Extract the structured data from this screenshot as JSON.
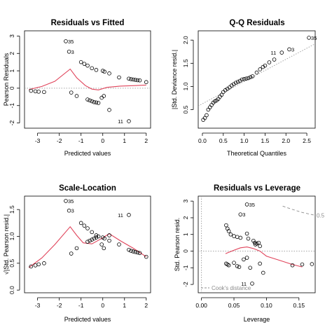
{
  "chart_data": [
    {
      "type": "scatter",
      "title": "Residuals vs Fitted",
      "xlabel": "Predicted values",
      "ylabel": "Pearson Residuals",
      "xlim": [
        -3.6,
        2.2
      ],
      "ylim": [
        -2.3,
        3.3
      ],
      "xticks": [
        -3,
        -2,
        -1,
        0,
        1,
        2
      ],
      "yticks": [
        -2,
        -1,
        0,
        1,
        2,
        3
      ],
      "reference_line": {
        "y": 0,
        "style": "dotted",
        "color": "#9a9a9a"
      },
      "points": [
        {
          "x": -3.3,
          "y": -0.15
        },
        {
          "x": -3.1,
          "y": -0.18
        },
        {
          "x": -2.95,
          "y": -0.2
        },
        {
          "x": -2.7,
          "y": -0.22
        },
        {
          "x": -1.7,
          "y": 2.7,
          "label": "35"
        },
        {
          "x": -1.55,
          "y": 2.1,
          "label": "3"
        },
        {
          "x": -1.45,
          "y": -0.25
        },
        {
          "x": -1.2,
          "y": -0.45
        },
        {
          "x": -1.0,
          "y": 1.5
        },
        {
          "x": -0.85,
          "y": 1.4
        },
        {
          "x": -0.7,
          "y": 1.3
        },
        {
          "x": -0.5,
          "y": 1.15
        },
        {
          "x": -0.3,
          "y": 1.05
        },
        {
          "x": 0.0,
          "y": 1.0
        },
        {
          "x": 0.08,
          "y": 0.95
        },
        {
          "x": 0.3,
          "y": 0.85
        },
        {
          "x": -0.7,
          "y": -0.65
        },
        {
          "x": -0.6,
          "y": -0.7
        },
        {
          "x": -0.5,
          "y": -0.75
        },
        {
          "x": -0.4,
          "y": -0.8
        },
        {
          "x": -0.3,
          "y": -0.82
        },
        {
          "x": -0.2,
          "y": -0.85
        },
        {
          "x": -0.05,
          "y": -0.55
        },
        {
          "x": 0.05,
          "y": -0.45
        },
        {
          "x": 0.3,
          "y": -1.25
        },
        {
          "x": 0.75,
          "y": 0.62
        },
        {
          "x": 1.2,
          "y": 0.55
        },
        {
          "x": 1.3,
          "y": 0.52
        },
        {
          "x": 1.4,
          "y": 0.5
        },
        {
          "x": 1.5,
          "y": 0.48
        },
        {
          "x": 1.6,
          "y": 0.46
        },
        {
          "x": 1.7,
          "y": 0.45
        },
        {
          "x": 2.0,
          "y": 0.35
        },
        {
          "x": 1.2,
          "y": -1.9,
          "label": "11"
        }
      ],
      "smooth": [
        [
          -3.4,
          -0.08
        ],
        [
          -2.8,
          0.1
        ],
        [
          -2.2,
          0.4
        ],
        [
          -1.5,
          1.1
        ],
        [
          -1.2,
          0.6
        ],
        [
          -0.8,
          0.15
        ],
        [
          -0.5,
          -0.05
        ],
        [
          -0.2,
          -0.1
        ],
        [
          0.2,
          0.05
        ],
        [
          0.8,
          0.12
        ],
        [
          1.5,
          0.15
        ],
        [
          2.0,
          0.18
        ]
      ]
    },
    {
      "type": "scatter",
      "title": "Q-Q Residuals",
      "xlabel": "Theoretical Quantiles",
      "ylabel": "|Std. Deviance resid.|",
      "xlim": [
        -0.1,
        2.7
      ],
      "ylim": [
        0.1,
        2.2
      ],
      "xticks": [
        0.0,
        0.5,
        1.0,
        1.5,
        2.0,
        2.5
      ],
      "xtick_labels": [
        "0.0",
        "0.5",
        "1.0",
        "1.5",
        "2.0",
        "2.5"
      ],
      "yticks": [
        0.5,
        1.0,
        1.5,
        2.0
      ],
      "ytick_labels": [
        "0.5",
        "1.0",
        "1.5",
        "2.0"
      ],
      "reference_line": {
        "from": [
          -0.1,
          0.58
        ],
        "to": [
          2.7,
          1.92
        ],
        "style": "dotted",
        "color": "#9a9a9a"
      },
      "points": [
        {
          "x": 0.02,
          "y": 0.28
        },
        {
          "x": 0.06,
          "y": 0.32
        },
        {
          "x": 0.1,
          "y": 0.38
        },
        {
          "x": 0.14,
          "y": 0.5
        },
        {
          "x": 0.18,
          "y": 0.55
        },
        {
          "x": 0.22,
          "y": 0.6
        },
        {
          "x": 0.26,
          "y": 0.65
        },
        {
          "x": 0.3,
          "y": 0.68
        },
        {
          "x": 0.34,
          "y": 0.7
        },
        {
          "x": 0.38,
          "y": 0.73
        },
        {
          "x": 0.42,
          "y": 0.78
        },
        {
          "x": 0.46,
          "y": 0.82
        },
        {
          "x": 0.5,
          "y": 0.88
        },
        {
          "x": 0.55,
          "y": 0.92
        },
        {
          "x": 0.6,
          "y": 0.95
        },
        {
          "x": 0.65,
          "y": 0.98
        },
        {
          "x": 0.7,
          "y": 1.02
        },
        {
          "x": 0.75,
          "y": 1.05
        },
        {
          "x": 0.8,
          "y": 1.08
        },
        {
          "x": 0.85,
          "y": 1.1
        },
        {
          "x": 0.9,
          "y": 1.12
        },
        {
          "x": 0.95,
          "y": 1.15
        },
        {
          "x": 1.0,
          "y": 1.16
        },
        {
          "x": 1.05,
          "y": 1.17
        },
        {
          "x": 1.1,
          "y": 1.18
        },
        {
          "x": 1.15,
          "y": 1.2
        },
        {
          "x": 1.2,
          "y": 1.22
        },
        {
          "x": 1.3,
          "y": 1.3
        },
        {
          "x": 1.38,
          "y": 1.37
        },
        {
          "x": 1.45,
          "y": 1.42
        },
        {
          "x": 1.5,
          "y": 1.45
        },
        {
          "x": 1.6,
          "y": 1.52
        },
        {
          "x": 1.72,
          "y": 1.58
        },
        {
          "x": 1.9,
          "y": 1.73,
          "label": "11"
        },
        {
          "x": 2.08,
          "y": 1.8,
          "label": "3"
        },
        {
          "x": 2.55,
          "y": 2.05,
          "label": "35"
        }
      ]
    },
    {
      "type": "scatter",
      "title": "Scale-Location",
      "xlabel": "Predicted values",
      "ylabel": "√|Std. Pearson resid.|",
      "xlim": [
        -3.6,
        2.2
      ],
      "ylim": [
        -0.05,
        1.75
      ],
      "xticks": [
        -3,
        -2,
        -1,
        0,
        1,
        2
      ],
      "yticks": [
        0.0,
        0.5,
        1.0,
        1.5
      ],
      "ytick_labels": [
        "0.0",
        "0.5",
        "1.0",
        "1.5"
      ],
      "points": [
        {
          "x": -3.3,
          "y": 0.44
        },
        {
          "x": -3.1,
          "y": 0.46
        },
        {
          "x": -2.95,
          "y": 0.48
        },
        {
          "x": -2.7,
          "y": 0.5
        },
        {
          "x": -1.7,
          "y": 1.66,
          "label": "35"
        },
        {
          "x": -1.55,
          "y": 1.48,
          "label": "3"
        },
        {
          "x": -1.45,
          "y": 0.68
        },
        {
          "x": -1.2,
          "y": 0.78
        },
        {
          "x": -1.0,
          "y": 1.25
        },
        {
          "x": -0.85,
          "y": 1.2
        },
        {
          "x": -0.7,
          "y": 1.15
        },
        {
          "x": -0.5,
          "y": 1.08
        },
        {
          "x": -0.3,
          "y": 1.02
        },
        {
          "x": 0.0,
          "y": 0.98
        },
        {
          "x": 0.08,
          "y": 0.96
        },
        {
          "x": 0.3,
          "y": 0.92
        },
        {
          "x": -0.7,
          "y": 0.9
        },
        {
          "x": -0.6,
          "y": 0.92
        },
        {
          "x": -0.5,
          "y": 0.94
        },
        {
          "x": -0.4,
          "y": 0.96
        },
        {
          "x": -0.3,
          "y": 0.98
        },
        {
          "x": -0.2,
          "y": 1.0
        },
        {
          "x": -0.05,
          "y": 0.85
        },
        {
          "x": 0.05,
          "y": 0.78
        },
        {
          "x": 0.3,
          "y": 1.02
        },
        {
          "x": 0.75,
          "y": 0.85
        },
        {
          "x": 1.2,
          "y": 0.75
        },
        {
          "x": 1.3,
          "y": 0.73
        },
        {
          "x": 1.4,
          "y": 0.72
        },
        {
          "x": 1.5,
          "y": 0.71
        },
        {
          "x": 1.6,
          "y": 0.7
        },
        {
          "x": 1.7,
          "y": 0.69
        },
        {
          "x": 2.0,
          "y": 0.62
        },
        {
          "x": 1.2,
          "y": 1.4,
          "label": "11"
        }
      ],
      "smooth": [
        [
          -3.4,
          0.42
        ],
        [
          -2.8,
          0.6
        ],
        [
          -2.2,
          0.85
        ],
        [
          -1.5,
          1.18
        ],
        [
          -1.2,
          1.02
        ],
        [
          -0.9,
          0.88
        ],
        [
          -0.5,
          0.86
        ],
        [
          -0.1,
          0.95
        ],
        [
          0.3,
          1.05
        ],
        [
          0.8,
          0.92
        ],
        [
          1.4,
          0.78
        ],
        [
          2.0,
          0.62
        ]
      ]
    },
    {
      "type": "scatter",
      "title": "Residuals vs Leverage",
      "xlabel": "Leverage",
      "ylabel": "Std. Pearson resid.",
      "xlim": [
        -0.005,
        0.175
      ],
      "ylim": [
        -2.5,
        3.3
      ],
      "xticks": [
        0.0,
        0.05,
        0.1,
        0.15
      ],
      "xtick_labels": [
        "0.00",
        "0.05",
        "0.10",
        "0.15"
      ],
      "yticks": [
        -2,
        -1,
        0,
        1,
        2,
        3
      ],
      "reference_line": {
        "y": 0,
        "style": "dotted",
        "color": "#9a9a9a"
      },
      "cook_contour_label": "0.5",
      "cook_legend": "Cook's distance",
      "cook_curve": [
        [
          0.125,
          2.7
        ],
        [
          0.14,
          2.5
        ],
        [
          0.155,
          2.32
        ],
        [
          0.175,
          2.15
        ]
      ],
      "points": [
        {
          "x": 0.07,
          "y": 2.8,
          "label": "35"
        },
        {
          "x": 0.06,
          "y": 2.2,
          "label": "3"
        },
        {
          "x": 0.038,
          "y": 1.55
        },
        {
          "x": 0.04,
          "y": 1.35
        },
        {
          "x": 0.042,
          "y": 1.2
        },
        {
          "x": 0.045,
          "y": 1.0
        },
        {
          "x": 0.05,
          "y": 0.9
        },
        {
          "x": 0.055,
          "y": 0.85
        },
        {
          "x": 0.06,
          "y": 0.8
        },
        {
          "x": 0.07,
          "y": 1.05
        },
        {
          "x": 0.072,
          "y": 0.75
        },
        {
          "x": 0.08,
          "y": 0.62
        },
        {
          "x": 0.082,
          "y": 0.5
        },
        {
          "x": 0.085,
          "y": 0.45
        },
        {
          "x": 0.088,
          "y": 0.5
        },
        {
          "x": 0.083,
          "y": 0.4
        },
        {
          "x": 0.09,
          "y": 0.3
        },
        {
          "x": 0.038,
          "y": -0.75
        },
        {
          "x": 0.04,
          "y": -0.8
        },
        {
          "x": 0.042,
          "y": -0.85
        },
        {
          "x": 0.05,
          "y": -0.7
        },
        {
          "x": 0.055,
          "y": -0.9
        },
        {
          "x": 0.058,
          "y": -0.95
        },
        {
          "x": 0.065,
          "y": -0.5
        },
        {
          "x": 0.07,
          "y": -0.4
        },
        {
          "x": 0.075,
          "y": -1.0
        },
        {
          "x": 0.09,
          "y": -0.75
        },
        {
          "x": 0.095,
          "y": -1.3
        },
        {
          "x": 0.14,
          "y": -0.85
        },
        {
          "x": 0.155,
          "y": -0.8
        },
        {
          "x": 0.17,
          "y": -0.78
        },
        {
          "x": 0.078,
          "y": -1.95,
          "label": "11"
        }
      ],
      "smooth": [
        [
          0.037,
          -0.15
        ],
        [
          0.05,
          0.05
        ],
        [
          0.06,
          0.2
        ],
        [
          0.07,
          0.25
        ],
        [
          0.08,
          0.15
        ],
        [
          0.09,
          0.0
        ],
        [
          0.1,
          -0.3
        ],
        [
          0.12,
          -0.55
        ],
        [
          0.14,
          -0.8
        ],
        [
          0.155,
          -0.95
        ]
      ]
    }
  ]
}
